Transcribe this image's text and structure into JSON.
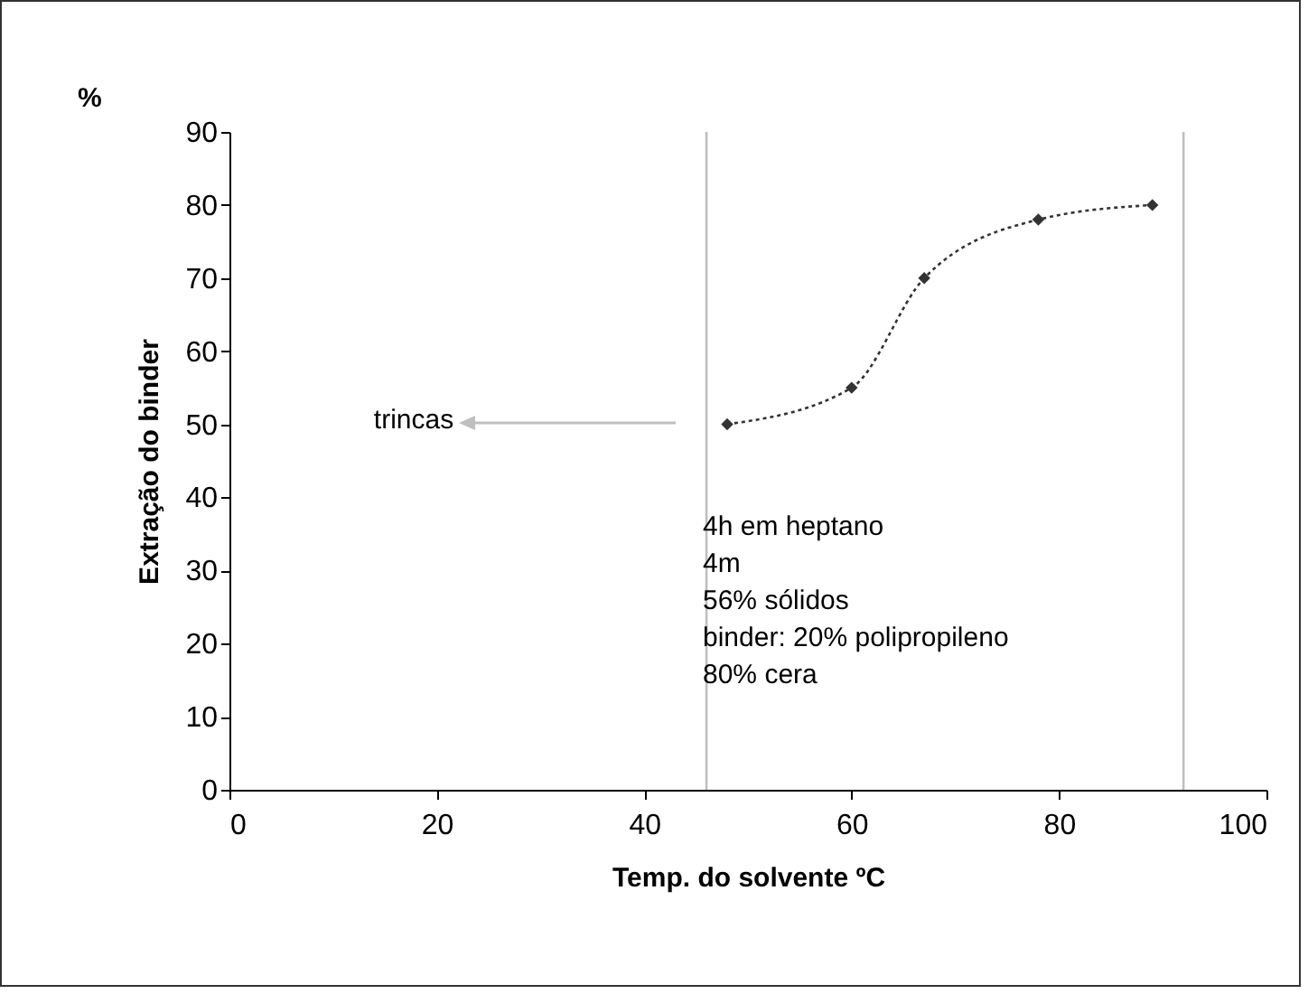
{
  "chart_data": {
    "type": "line",
    "xlabel": "Temp. do solvente ºC",
    "ylabel": "Extração do binder",
    "x": [
      48,
      60,
      67,
      78,
      89
    ],
    "series": [
      {
        "color": "#333333",
        "values": [
          50,
          55,
          70,
          78,
          80
        ]
      }
    ],
    "marker": "diamond",
    "line_style": "dotted",
    "grid": false,
    "xlim": [
      0,
      100
    ],
    "xticks": [
      0,
      20,
      40,
      60,
      80,
      100
    ],
    "ylim": [
      0,
      90
    ],
    "yticks": [
      0,
      10,
      20,
      30,
      40,
      50,
      60,
      70,
      80,
      90
    ],
    "ref_lines": [
      {
        "axis": "x",
        "value": 46,
        "color": "#bfbfbf"
      },
      {
        "axis": "x",
        "value": 92,
        "color": "#bfbfbf"
      }
    ],
    "annotations": [
      "%",
      "trincas",
      "4h em heptano\n4m\n56% sólidos\nbinder: 20% polipropileno\n          80% cera"
    ]
  }
}
